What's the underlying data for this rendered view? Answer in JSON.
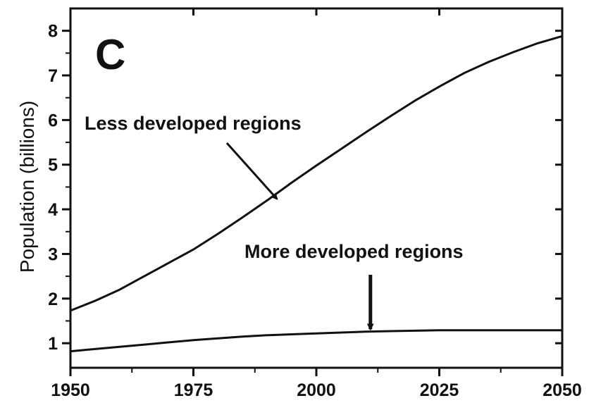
{
  "chart_data": {
    "type": "line",
    "panel_label": "C",
    "title": "",
    "xlabel": "",
    "ylabel": "Population (billions)",
    "xlim": [
      1950,
      2050
    ],
    "ylim": [
      0.45,
      8.5
    ],
    "x_ticks": [
      1950,
      1975,
      2000,
      2025,
      2050
    ],
    "y_ticks": [
      1,
      2,
      3,
      4,
      5,
      6,
      7,
      8
    ],
    "grid": false,
    "legend": "none",
    "x": [
      1950,
      1955,
      1960,
      1965,
      1970,
      1975,
      1980,
      1985,
      1990,
      1995,
      2000,
      2005,
      2010,
      2015,
      2020,
      2025,
      2030,
      2035,
      2040,
      2045,
      2050
    ],
    "series": [
      {
        "values": [
          1.73,
          1.95,
          2.2,
          2.5,
          2.8,
          3.1,
          3.45,
          3.82,
          4.2,
          4.6,
          4.98,
          5.35,
          5.72,
          6.08,
          6.43,
          6.75,
          7.05,
          7.3,
          7.52,
          7.72,
          7.88
        ],
        "color": "#111111"
      },
      {
        "values": [
          0.82,
          0.87,
          0.92,
          0.97,
          1.02,
          1.07,
          1.11,
          1.15,
          1.18,
          1.2,
          1.22,
          1.24,
          1.26,
          1.27,
          1.28,
          1.29,
          1.29,
          1.29,
          1.29,
          1.29,
          1.29
        ],
        "color": "#111111"
      }
    ],
    "annotations": [
      {
        "text": "Less developed regions",
        "arrow_to": {
          "x": 1992,
          "y": 4.2
        }
      },
      {
        "text": "More developed regions",
        "arrow_to": {
          "x": 2011,
          "y": 1.25
        }
      }
    ]
  }
}
